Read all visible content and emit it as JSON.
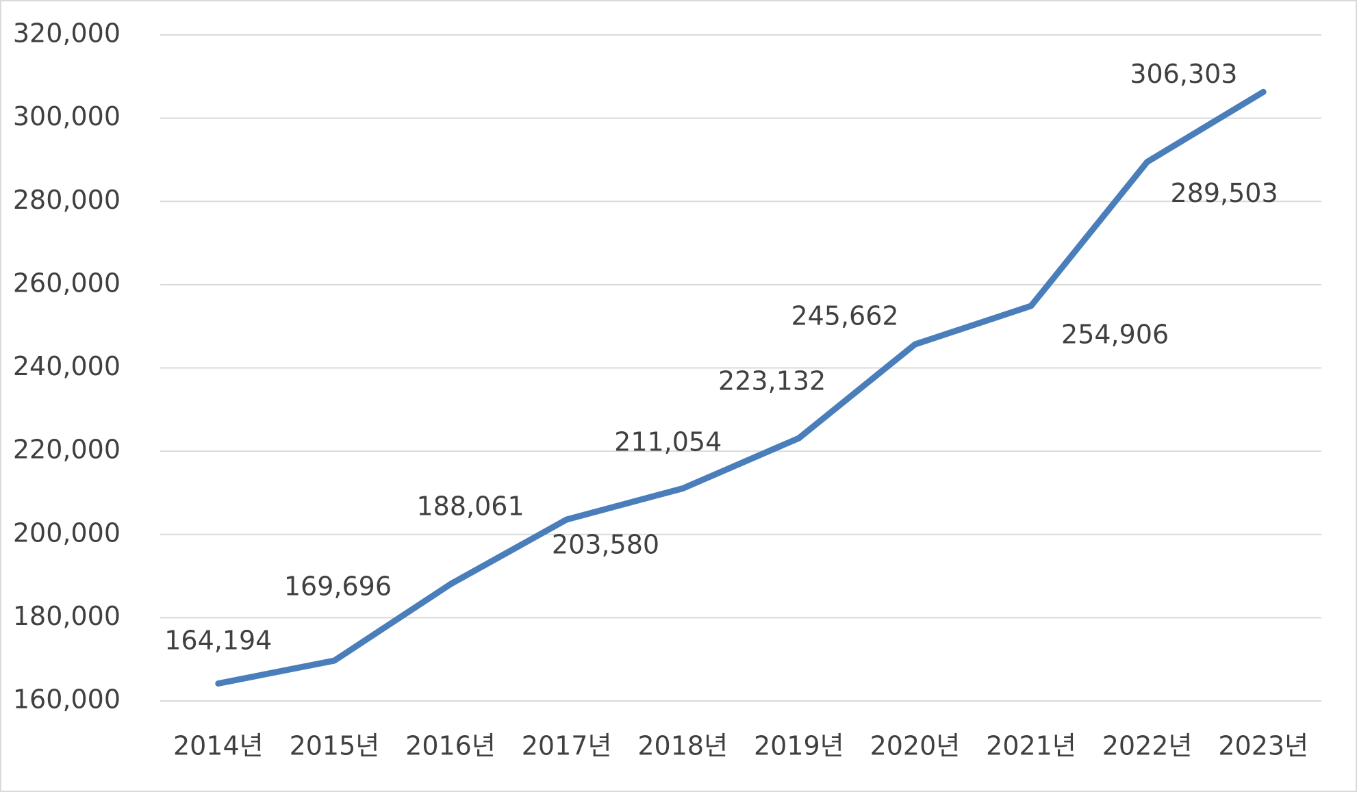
{
  "chart_data": {
    "type": "line",
    "categories": [
      "2014년",
      "2015년",
      "2016년",
      "2017년",
      "2018년",
      "2019년",
      "2020년",
      "2021년",
      "2022년",
      "2023년"
    ],
    "series": [
      {
        "color": "#4a7ebb",
        "values": [
          164194,
          169696,
          188061,
          203580,
          211054,
          223132,
          245662,
          254906,
          289503,
          306303
        ],
        "value_labels": [
          "164,194",
          "169,696",
          "188,061",
          "203,580",
          "211,054",
          "223,132",
          "245,662",
          "254,906",
          "289,503",
          "306,303"
        ]
      }
    ],
    "ylim": [
      160000,
      320000
    ],
    "yticks": [
      {
        "value": 160000,
        "label": "160,000"
      },
      {
        "value": 180000,
        "label": "180,000"
      },
      {
        "value": 200000,
        "label": "200,000"
      },
      {
        "value": 220000,
        "label": "220,000"
      },
      {
        "value": 240000,
        "label": "240,000"
      },
      {
        "value": 260000,
        "label": "260,000"
      },
      {
        "value": 280000,
        "label": "280,000"
      },
      {
        "value": 300000,
        "label": "300,000"
      },
      {
        "value": 320000,
        "label": "320,000"
      }
    ],
    "grid": true
  }
}
